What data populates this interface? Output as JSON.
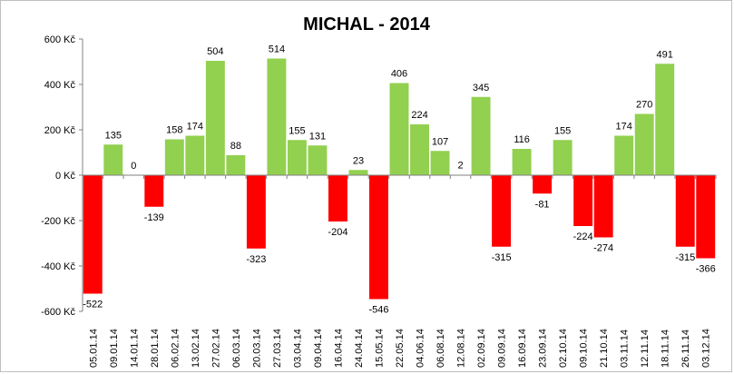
{
  "chart_data": {
    "type": "bar",
    "title": "MICHAL - 2014",
    "xlabel": "",
    "ylabel": "",
    "ylim": [
      -600,
      600
    ],
    "y_ticks": [
      -600,
      -400,
      -200,
      0,
      200,
      400,
      600
    ],
    "y_tick_labels": [
      "-600 Kč",
      "-400 Kč",
      "-200 Kč",
      "0 Kč",
      "200 Kč",
      "400 Kč",
      "600 Kč"
    ],
    "categories": [
      "05.01.14",
      "09.01.14",
      "14.01.14",
      "28.01.14",
      "06.02.14",
      "13.02.14",
      "27.02.14",
      "06.03.14",
      "20.03.14",
      "27.03.14",
      "03.04.14",
      "09.04.14",
      "16.04.14",
      "24.04.14",
      "15.05.14",
      "22.05.14",
      "04.06.14",
      "06.08.14",
      "12.08.14",
      "02.09.14",
      "09.09.14",
      "16.09.14",
      "23.09.14",
      "02.10.14",
      "09.10.14",
      "21.10.14",
      "03.11.14",
      "12.11.14",
      "18.11.14",
      "26.11.14",
      "03.12.14"
    ],
    "values": [
      -522,
      135,
      0,
      -139,
      158,
      174,
      504,
      88,
      -323,
      514,
      155,
      131,
      -204,
      23,
      -546,
      406,
      224,
      107,
      2,
      345,
      -315,
      116,
      -81,
      155,
      -224,
      -274,
      174,
      270,
      491,
      -315,
      -366
    ],
    "labels": [
      "-522",
      "135",
      "0",
      "-139",
      "158",
      "174",
      "504",
      "88",
      "-323",
      "514",
      "155",
      "131",
      "-204",
      "23",
      "-546",
      "406",
      "224",
      "107",
      "2",
      "345",
      "-315",
      "116",
      "-81",
      "155",
      "-224",
      "-274",
      "174",
      "270",
      "491",
      "-315",
      "-366"
    ],
    "grid": false,
    "legend": "none",
    "colors": {
      "positive": "#92d050",
      "negative": "#ff0000",
      "axis": "#808080"
    }
  }
}
